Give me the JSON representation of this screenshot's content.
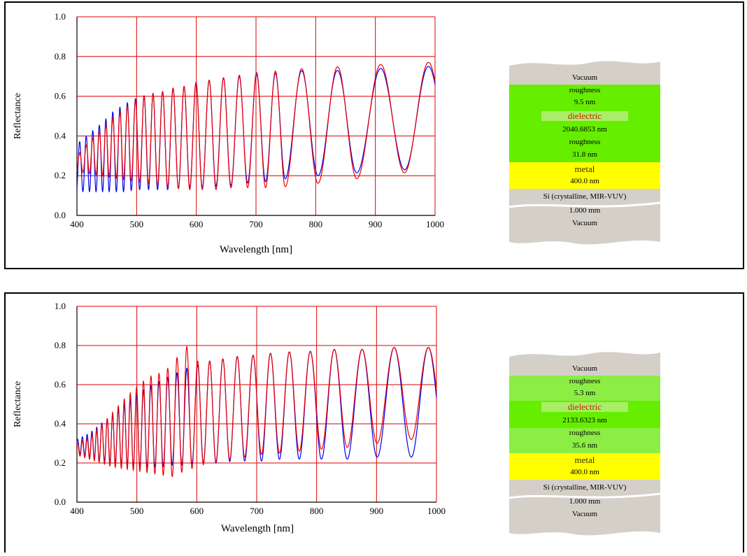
{
  "colors": {
    "grid": "#dd0000",
    "measured": "#0000ee",
    "fitted": "#ee0000",
    "substrate": "#d4d0c8",
    "roughness1": "#66ee00",
    "roughness2": "#8cee44",
    "dielectric": "#66ee00",
    "metal": "#ffff00",
    "dielectric_text": "#cc2200"
  },
  "panels": [
    {
      "chart_data": {
        "type": "line",
        "xlabel": "Wavelength [nm]",
        "ylabel": "Reflectance",
        "xlim": [
          400,
          1000
        ],
        "ylim": [
          0.0,
          1.0
        ],
        "x_ticks": [
          "400",
          "500",
          "600",
          "700",
          "800",
          "900",
          "1000"
        ],
        "y_ticks": [
          "0.0",
          "0.2",
          "0.4",
          "0.6",
          "0.8",
          "1.0"
        ],
        "grid": true,
        "series": [
          {
            "color": "blue",
            "x": [
              400,
              420,
              440,
              460,
              480,
              500,
              520,
              540,
              560,
              580,
              600,
              620,
              640,
              660,
              680,
              700,
              720,
              740,
              760,
              780,
              800,
              820,
              840,
              860,
              880,
              900,
              920,
              940,
              960,
              980,
              1000
            ],
            "upper": [
              0.36,
              0.41,
              0.46,
              0.52,
              0.56,
              0.59,
              0.61,
              0.62,
              0.64,
              0.65,
              0.67,
              0.68,
              0.69,
              0.7,
              0.7,
              0.71,
              0.71,
              0.72,
              0.72,
              0.73,
              0.73,
              0.73,
              0.73,
              0.74,
              0.74,
              0.74,
              0.74,
              0.75,
              0.75,
              0.75,
              0.75
            ],
            "lower": [
              0.12,
              0.12,
              0.12,
              0.12,
              0.12,
              0.13,
              0.13,
              0.13,
              0.13,
              0.14,
              0.14,
              0.14,
              0.15,
              0.15,
              0.16,
              0.17,
              0.17,
              0.18,
              0.19,
              0.19,
              0.2,
              0.2,
              0.21,
              0.21,
              0.22,
              0.22,
              0.22,
              0.23,
              0.23,
              0.23,
              0.23
            ]
          },
          {
            "color": "red",
            "x": [
              400,
              420,
              440,
              460,
              480,
              500,
              520,
              540,
              560,
              580,
              600,
              620,
              640,
              660,
              680,
              700,
              720,
              740,
              760,
              780,
              800,
              820,
              840,
              860,
              880,
              900,
              920,
              940,
              960,
              980,
              1000
            ],
            "upper": [
              0.3,
              0.37,
              0.43,
              0.49,
              0.54,
              0.58,
              0.61,
              0.62,
              0.64,
              0.65,
              0.67,
              0.68,
              0.69,
              0.7,
              0.71,
              0.72,
              0.72,
              0.73,
              0.73,
              0.74,
              0.74,
              0.74,
              0.75,
              0.75,
              0.76,
              0.76,
              0.76,
              0.76,
              0.77,
              0.77,
              0.77
            ],
            "lower": [
              0.22,
              0.21,
              0.2,
              0.19,
              0.18,
              0.17,
              0.16,
              0.15,
              0.14,
              0.13,
              0.13,
              0.13,
              0.13,
              0.14,
              0.14,
              0.14,
              0.14,
              0.14,
              0.15,
              0.16,
              0.16,
              0.17,
              0.18,
              0.18,
              0.19,
              0.2,
              0.21,
              0.21,
              0.22,
              0.22,
              0.22
            ]
          }
        ],
        "minima_nm": [
          410,
          421,
          432,
          443,
          454,
          466,
          478,
          491,
          505,
          520,
          535,
          552,
          570,
          589,
          610,
          633,
          658,
          686,
          716,
          749,
          804,
          869,
          949
        ]
      },
      "stack": {
        "top": "Vacuum",
        "r1_label": "roughness",
        "r1_value": "9.5 nm",
        "dielectric_label": "dielectric",
        "dielectric_value": "2040.6853 nm",
        "r2_label": "roughness",
        "r2_value": "31.8 nm",
        "metal_label": "metal",
        "metal_value": "400.0 nm",
        "substrate_label": "Si (crystalline, MIR-VUV)",
        "substrate_value": "1.000 mm",
        "bottom": "Vacuum"
      }
    },
    {
      "chart_data": {
        "type": "line",
        "xlabel": "Wavelength [nm]",
        "ylabel": "Reflectance",
        "xlim": [
          400,
          1000
        ],
        "ylim": [
          0.0,
          1.0
        ],
        "x_ticks": [
          "400",
          "500",
          "600",
          "700",
          "800",
          "900",
          "1000"
        ],
        "y_ticks": [
          "0.0",
          "0.2",
          "0.4",
          "0.6",
          "0.8",
          "1.0"
        ],
        "grid": true,
        "series": [
          {
            "color": "blue",
            "x": [
              400,
              420,
              440,
              460,
              480,
              500,
              520,
              540,
              560,
              580,
              600,
              620,
              640,
              660,
              680,
              700,
              720,
              740,
              760,
              780,
              800,
              820,
              840,
              860,
              880,
              900,
              920,
              940,
              960,
              980,
              1000
            ],
            "upper": [
              0.32,
              0.35,
              0.4,
              0.45,
              0.5,
              0.55,
              0.59,
              0.62,
              0.65,
              0.68,
              0.7,
              0.72,
              0.73,
              0.74,
              0.75,
              0.75,
              0.76,
              0.76,
              0.77,
              0.77,
              0.77,
              0.78,
              0.78,
              0.78,
              0.78,
              0.79,
              0.79,
              0.79,
              0.79,
              0.79,
              0.79
            ],
            "lower": [
              0.25,
              0.23,
              0.21,
              0.2,
              0.19,
              0.18,
              0.18,
              0.18,
              0.19,
              0.19,
              0.2,
              0.2,
              0.2,
              0.21,
              0.21,
              0.21,
              0.21,
              0.22,
              0.22,
              0.22,
              0.22,
              0.22,
              0.22,
              0.22,
              0.22,
              0.23,
              0.23,
              0.23,
              0.23,
              0.23,
              0.23
            ]
          },
          {
            "color": "red",
            "x": [
              400,
              420,
              440,
              460,
              480,
              500,
              520,
              540,
              560,
              580,
              600,
              620,
              640,
              660,
              680,
              700,
              720,
              740,
              760,
              780,
              800,
              820,
              840,
              860,
              880,
              900,
              920,
              940,
              960,
              980,
              1000
            ],
            "upper": [
              0.3,
              0.33,
              0.39,
              0.46,
              0.53,
              0.59,
              0.64,
              0.66,
              0.7,
              0.81,
              0.72,
              0.72,
              0.73,
              0.74,
              0.75,
              0.75,
              0.76,
              0.76,
              0.77,
              0.77,
              0.77,
              0.78,
              0.78,
              0.78,
              0.78,
              0.79,
              0.79,
              0.79,
              0.79,
              0.79,
              0.79
            ],
            "lower": [
              0.24,
              0.22,
              0.2,
              0.18,
              0.17,
              0.16,
              0.15,
              0.14,
              0.13,
              0.16,
              0.18,
              0.2,
              0.21,
              0.22,
              0.23,
              0.24,
              0.25,
              0.25,
              0.26,
              0.26,
              0.27,
              0.27,
              0.28,
              0.28,
              0.29,
              0.3,
              0.31,
              0.32,
              0.32,
              0.33,
              0.33
            ]
          }
        ],
        "minima_nm": [
          405,
          413,
          421,
          429,
          437,
          446,
          455,
          464,
          474,
          484,
          494,
          505,
          517,
          530,
          544,
          559,
          575,
          592,
          611,
          632,
          655,
          680,
          708,
          738,
          771,
          808,
          851,
          901,
          958
        ]
      },
      "stack": {
        "top": "Vacuum",
        "r1_label": "roughness",
        "r1_value": "5.3 nm",
        "dielectric_label": "dielectric",
        "dielectric_value": "2133.6323 nm",
        "r2_label": "roughness",
        "r2_value": "35.6 nm",
        "metal_label": "metal",
        "metal_value": "400.0 nm",
        "substrate_label": "Si (crystalline, MIR-VUV)",
        "substrate_value": "1.000 mm",
        "bottom": "Vacuum"
      }
    }
  ]
}
